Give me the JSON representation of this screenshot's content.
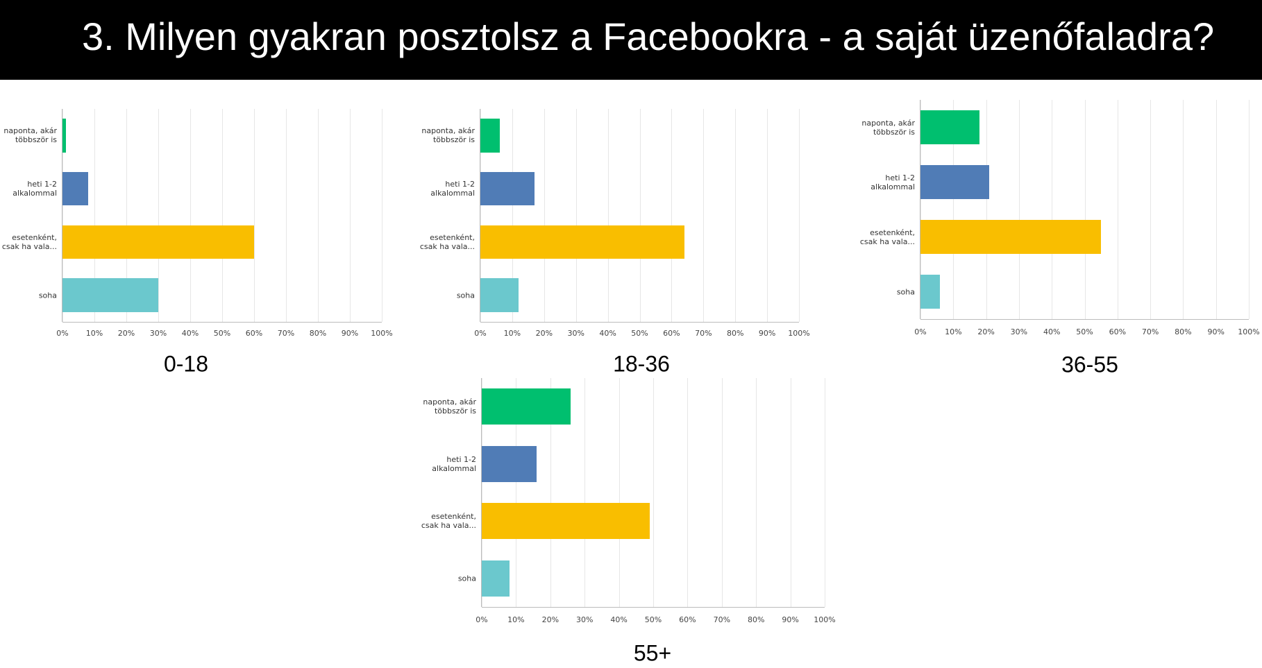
{
  "title": "3. Milyen gyakran posztolsz a Facebookra - a saját üzenőfaladra?",
  "chart_data": [
    {
      "type": "bar",
      "orientation": "horizontal",
      "title": "0-18",
      "categories": [
        "naponta, akár többször is",
        "heti 1-2 alkalommal",
        "esetenként, csak ha vala...",
        "soha"
      ],
      "values": [
        1,
        8,
        60,
        30
      ],
      "colors": [
        "#00bf6f",
        "#507cb6",
        "#f9be00",
        "#6bc8cd"
      ],
      "xlim": [
        0,
        100
      ],
      "xticks": [
        {
          "value": 0,
          "label": "0%"
        },
        {
          "value": 10,
          "label": "10%"
        },
        {
          "value": 20,
          "label": "20%"
        },
        {
          "value": 30,
          "label": "30%"
        },
        {
          "value": 40,
          "label": "40%"
        },
        {
          "value": 50,
          "label": "50%"
        },
        {
          "value": 60,
          "label": "60%"
        },
        {
          "value": 70,
          "label": "70%"
        },
        {
          "value": 80,
          "label": "80%"
        },
        {
          "value": 90,
          "label": "90%"
        },
        {
          "value": 100,
          "label": "100%"
        }
      ],
      "grid": true
    },
    {
      "type": "bar",
      "orientation": "horizontal",
      "title": "18-36",
      "categories": [
        "naponta, akár többször is",
        "heti 1-2 alkalommal",
        "esetenként, csak ha vala...",
        "soha"
      ],
      "values": [
        6,
        17,
        64,
        12
      ],
      "colors": [
        "#00bf6f",
        "#507cb6",
        "#f9be00",
        "#6bc8cd"
      ],
      "xlim": [
        0,
        100
      ],
      "xticks": [
        {
          "value": 0,
          "label": "0%"
        },
        {
          "value": 10,
          "label": "10%"
        },
        {
          "value": 20,
          "label": "20%"
        },
        {
          "value": 30,
          "label": "30%"
        },
        {
          "value": 40,
          "label": "40%"
        },
        {
          "value": 50,
          "label": "50%"
        },
        {
          "value": 60,
          "label": "60%"
        },
        {
          "value": 70,
          "label": "70%"
        },
        {
          "value": 80,
          "label": "80%"
        },
        {
          "value": 90,
          "label": "90%"
        },
        {
          "value": 100,
          "label": "100%"
        }
      ],
      "grid": true
    },
    {
      "type": "bar",
      "orientation": "horizontal",
      "title": "36-55",
      "categories": [
        "naponta, akár többször is",
        "heti 1-2 alkalommal",
        "esetenként, csak ha vala...",
        "soha"
      ],
      "values": [
        18,
        21,
        55,
        6
      ],
      "colors": [
        "#00bf6f",
        "#507cb6",
        "#f9be00",
        "#6bc8cd"
      ],
      "xlim": [
        0,
        100
      ],
      "xticks": [
        {
          "value": 0,
          "label": "0%"
        },
        {
          "value": 10,
          "label": "10%"
        },
        {
          "value": 20,
          "label": "20%"
        },
        {
          "value": 30,
          "label": "30%"
        },
        {
          "value": 40,
          "label": "40%"
        },
        {
          "value": 50,
          "label": "50%"
        },
        {
          "value": 60,
          "label": "60%"
        },
        {
          "value": 70,
          "label": "70%"
        },
        {
          "value": 80,
          "label": "80%"
        },
        {
          "value": 90,
          "label": "90%"
        },
        {
          "value": 100,
          "label": "100%"
        }
      ],
      "grid": true
    },
    {
      "type": "bar",
      "orientation": "horizontal",
      "title": "55+",
      "categories": [
        "naponta, akár többször is",
        "heti 1-2 alkalommal",
        "esetenként, csak ha vala...",
        "soha"
      ],
      "values": [
        26,
        16,
        49,
        8
      ],
      "colors": [
        "#00bf6f",
        "#507cb6",
        "#f9be00",
        "#6bc8cd"
      ],
      "xlim": [
        0,
        100
      ],
      "xticks": [
        {
          "value": 0,
          "label": "0%"
        },
        {
          "value": 10,
          "label": "10%"
        },
        {
          "value": 20,
          "label": "20%"
        },
        {
          "value": 30,
          "label": "30%"
        },
        {
          "value": 40,
          "label": "40%"
        },
        {
          "value": 50,
          "label": "50%"
        },
        {
          "value": 60,
          "label": "60%"
        },
        {
          "value": 70,
          "label": "70%"
        },
        {
          "value": 80,
          "label": "80%"
        },
        {
          "value": 90,
          "label": "90%"
        },
        {
          "value": 100,
          "label": "100%"
        }
      ],
      "grid": true
    }
  ]
}
